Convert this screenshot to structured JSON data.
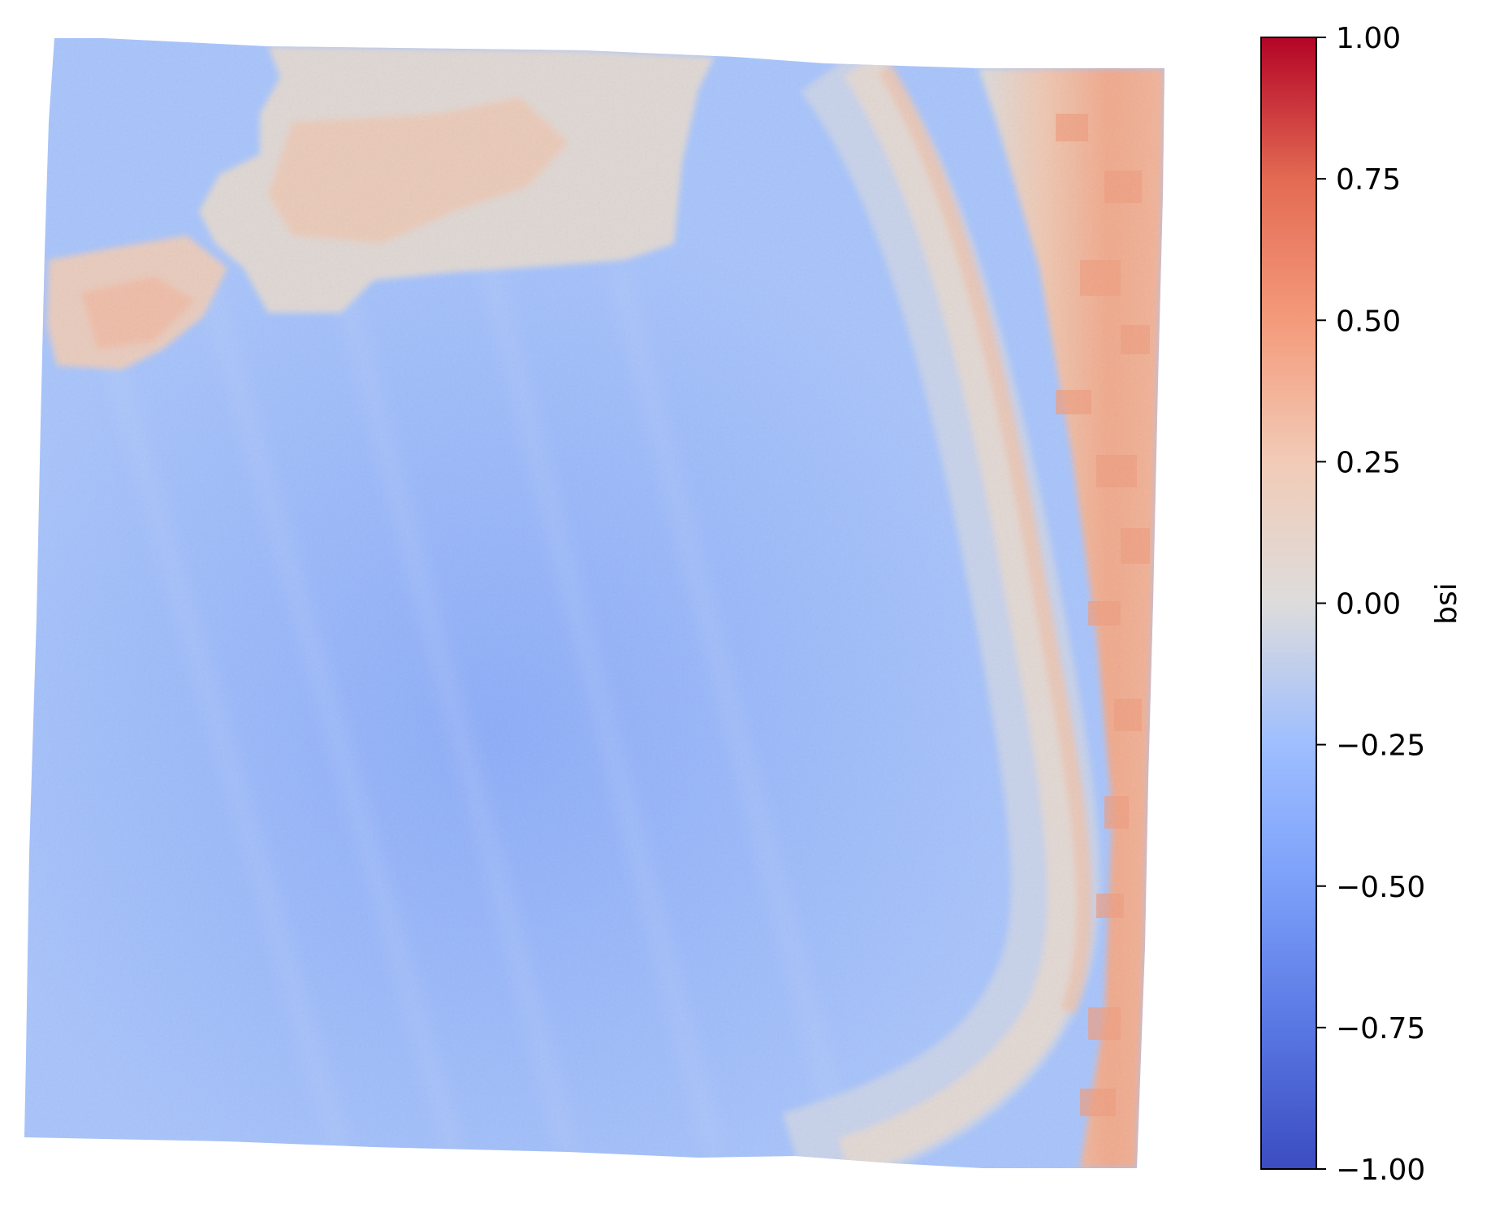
{
  "chart_data": {
    "type": "heatmap",
    "title": "",
    "xlabel": "",
    "ylabel": "",
    "axes_visible": false,
    "colormap": "coolwarm",
    "vmin": -1.0,
    "vmax": 1.0,
    "colorbar": {
      "label": "bsi",
      "ticks": [
        -1.0,
        -0.75,
        -0.5,
        -0.25,
        0.0,
        0.25,
        0.5,
        0.75,
        1.0
      ],
      "tick_labels": [
        "−1.00",
        "−0.75",
        "−0.50",
        "−0.25",
        "0.00",
        "0.25",
        "0.50",
        "0.75",
        "1.00"
      ]
    },
    "value_summary": {
      "dominant_interior": -0.45,
      "upper_left_patches": 0.15,
      "right_edge_strip": 0.3,
      "curved_band": -0.05
    },
    "colormap_stops": [
      {
        "v": -1.0,
        "color": "#3b4cc0"
      },
      {
        "v": -0.75,
        "color": "#5977e3"
      },
      {
        "v": -0.5,
        "color": "#7b9ff9"
      },
      {
        "v": -0.25,
        "color": "#9ebeff"
      },
      {
        "v": 0.0,
        "color": "#dddcdc"
      },
      {
        "v": 0.25,
        "color": "#f2cbb7"
      },
      {
        "v": 0.5,
        "color": "#f49a7b"
      },
      {
        "v": 0.75,
        "color": "#e36a53"
      },
      {
        "v": 1.0,
        "color": "#b40426"
      }
    ]
  }
}
